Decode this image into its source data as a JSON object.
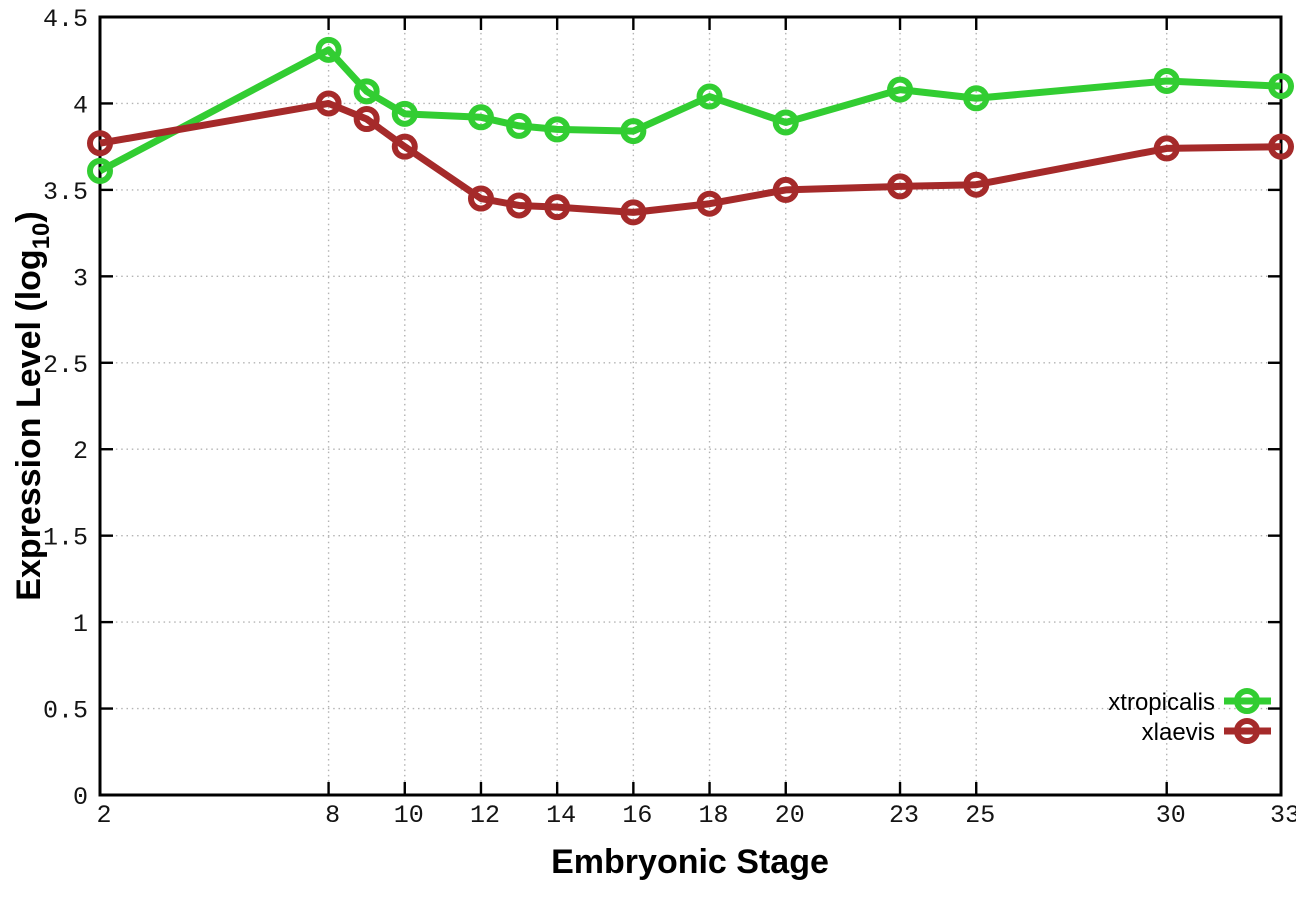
{
  "figure": {
    "background": "#ffffff",
    "border_color": "#000000",
    "grid_color": "#b3b3b3",
    "tick_label_color": "#141414"
  },
  "chart_data": {
    "type": "line",
    "title": "",
    "xlabel": "Embryonic Stage",
    "ylabel": "Expression Level (log10)",
    "ylabel_main": "Expression Level (log",
    "ylabel_sub": "10",
    "ylabel_close": ")",
    "xlim": [
      2,
      33
    ],
    "ylim": [
      0,
      4.5
    ],
    "xticks": [
      2,
      8,
      10,
      12,
      14,
      16,
      18,
      20,
      23,
      25,
      30,
      33
    ],
    "yticks": [
      0,
      0.5,
      1,
      1.5,
      2,
      2.5,
      3,
      3.5,
      4,
      4.5
    ],
    "grid": true,
    "grid_style": "dotted",
    "legend_position": "inside-bottom-right",
    "x": [
      2,
      8,
      9,
      10,
      12,
      13,
      14,
      16,
      18,
      20,
      23,
      25,
      30,
      33
    ],
    "series": [
      {
        "name": "xtropicalis",
        "color": "#32CD32",
        "marker": "open-circle",
        "values": [
          3.61,
          4.31,
          4.07,
          3.94,
          3.92,
          3.87,
          3.85,
          3.84,
          4.04,
          3.89,
          4.08,
          4.03,
          4.13,
          4.1
        ]
      },
      {
        "name": "xlaevis",
        "color": "#A52A2A",
        "marker": "open-circle",
        "values": [
          3.77,
          4.0,
          3.91,
          3.75,
          3.45,
          3.41,
          3.4,
          3.37,
          3.42,
          3.5,
          3.52,
          3.53,
          3.74,
          3.75
        ]
      }
    ]
  }
}
